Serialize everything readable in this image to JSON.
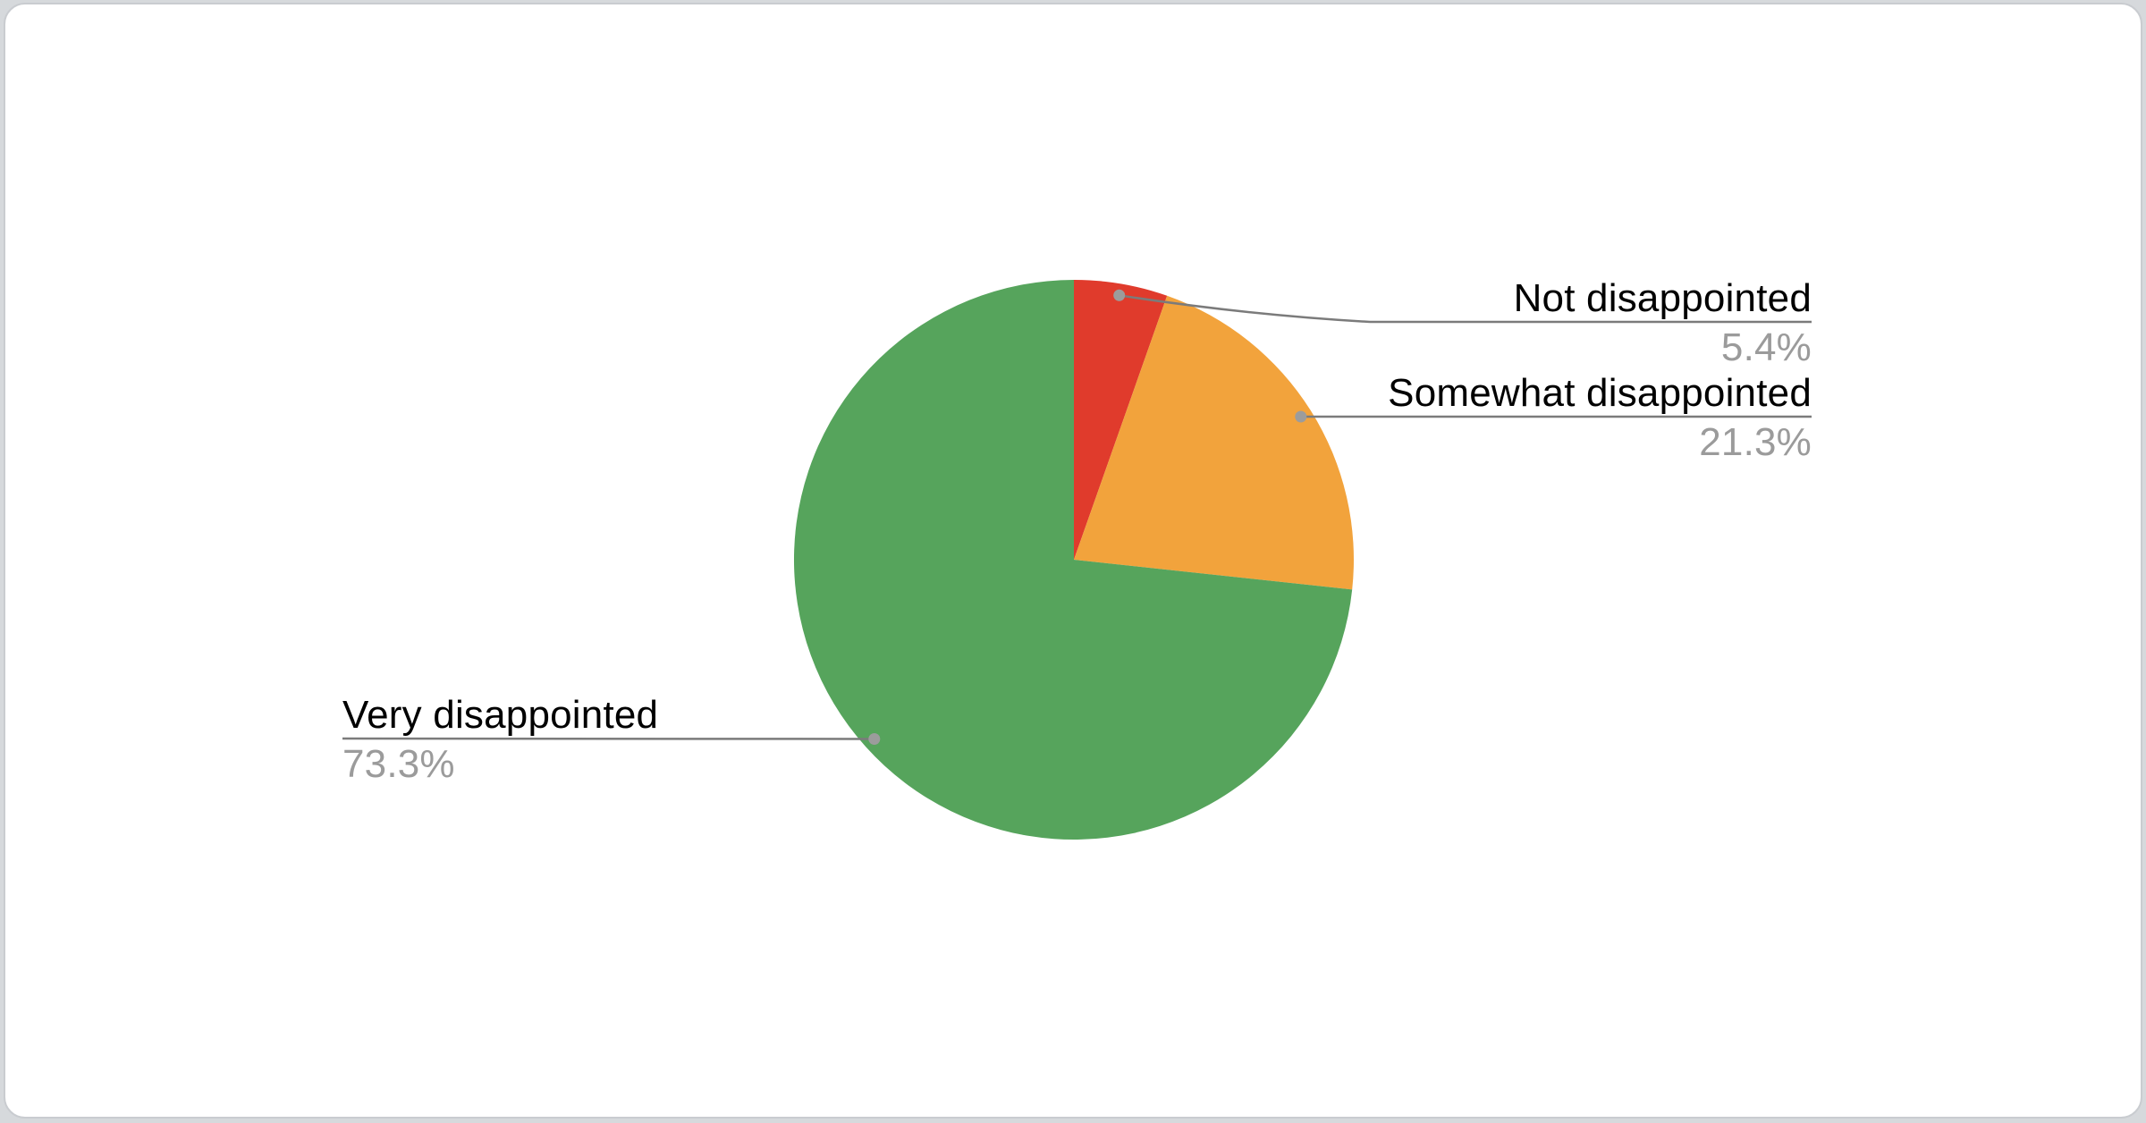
{
  "page": {
    "background_color": "#d6d9dc"
  },
  "card": {
    "background_color": "#ffffff",
    "border_color": "#c9ccd0"
  },
  "chart_data": {
    "type": "pie",
    "title": "",
    "start_angle_deg": -90,
    "direction": "clockwise",
    "legend_position": "labeled-callouts",
    "grid": false,
    "slices": [
      {
        "label": "Not disappointed",
        "value_pct": 5.4,
        "percent_label": "5.4%",
        "color": "#e03b2c"
      },
      {
        "label": "Somewhat disappointed",
        "value_pct": 21.3,
        "percent_label": "21.3%",
        "color": "#f2a33c"
      },
      {
        "label": "Very disappointed",
        "value_pct": 73.3,
        "percent_label": "73.3%",
        "color": "#56a45c"
      }
    ],
    "callout_label_color": "#000000",
    "callout_percent_color": "#9b9b9b",
    "leader_line_color": "#7b7b7b",
    "leader_dot_color": "#9c9c9c"
  }
}
